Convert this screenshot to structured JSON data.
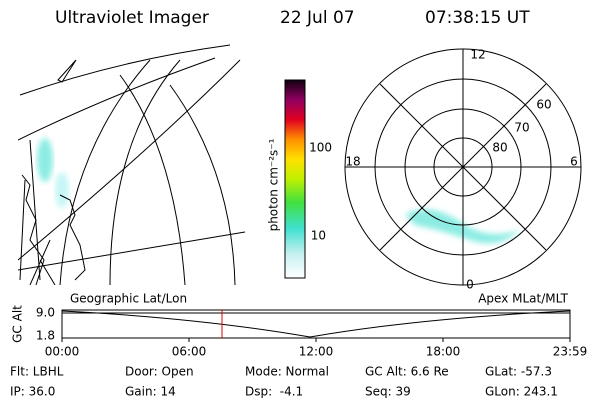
{
  "header": {
    "title": "Ultraviolet Imager",
    "date": "22 Jul 07",
    "time": "07:38:15 UT"
  },
  "colorbar": {
    "label": "photon cm⁻²s⁻¹",
    "ticks": [
      "100",
      "10"
    ]
  },
  "polar": {
    "mlt_labels": [
      "12",
      "18",
      "6",
      "0"
    ],
    "lat_labels": [
      "60",
      "70",
      "80"
    ]
  },
  "timeline": {
    "left_label": "Geographic Lat/Lon",
    "right_label": "Apex MLat/MLT",
    "axis_label": "GC Alt",
    "yticks": [
      "9.0",
      "1.8"
    ],
    "xticks": [
      "00:00",
      "06:00",
      "12:00",
      "18:00",
      "23:59"
    ]
  },
  "status": [
    [
      "Flt: LBHL",
      "Door: Open",
      "Mode: Normal",
      "GC Alt: 6.6 Re",
      "GLat: -57.3"
    ],
    [
      "IP: 36.0",
      "Gain: 14",
      "Dsp:  -4.1",
      "Seq: 39",
      "GLon: 243.1"
    ]
  ]
}
